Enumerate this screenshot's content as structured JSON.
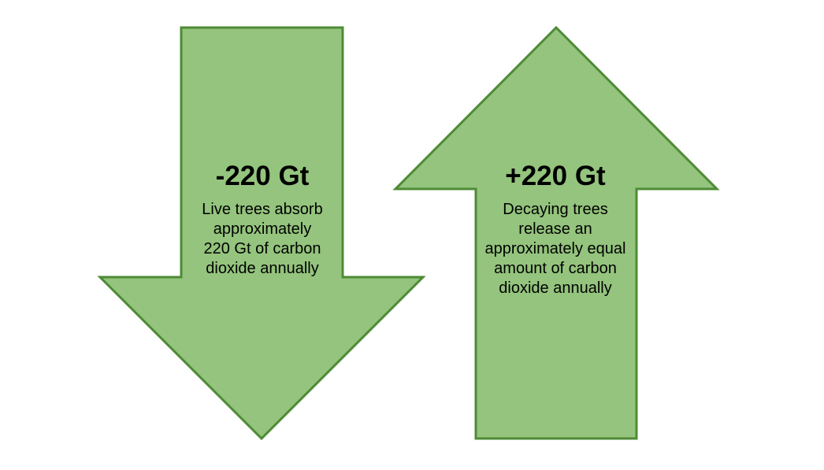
{
  "colors": {
    "arrow_fill": "#94C47D",
    "arrow_stroke": "#4E8B35",
    "text": "#000000"
  },
  "down_arrow": {
    "icon": "down-arrow-icon",
    "value": "-220 Gt",
    "description_lines": [
      "Live trees absorb",
      "approximately",
      "220 Gt of carbon",
      "dioxide annually"
    ]
  },
  "up_arrow": {
    "icon": "up-arrow-icon",
    "value": "+220 Gt",
    "description_lines": [
      "Decaying trees",
      "release an",
      "approximately equal",
      "amount of carbon",
      "dioxide annually"
    ]
  }
}
